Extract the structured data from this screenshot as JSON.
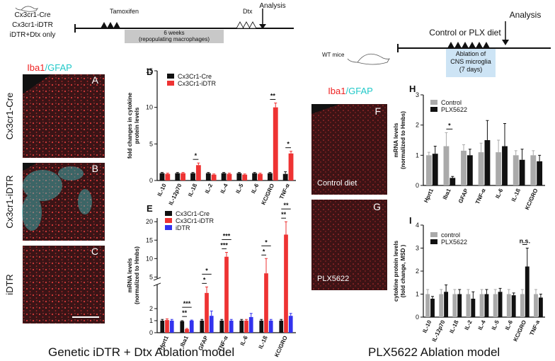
{
  "left_scheme": {
    "groups": [
      "Cx3cr1-Cre",
      "Cx3cr1-iDTR",
      "iDTR+Dtx only"
    ],
    "tamoxifen": "Tamoxifen",
    "period": [
      "6 weeks",
      "(repopulating macrophages)"
    ],
    "dtx": "Dtx",
    "analysis": "Analysis"
  },
  "right_scheme": {
    "mice": "WT mice",
    "diet": "Control or PLX diet",
    "ablation": [
      "Ablation of",
      "CNS microglia",
      "(7 days)"
    ],
    "analysis": "Analysis"
  },
  "images": {
    "stain": [
      "Iba1",
      "/GFAP"
    ],
    "left": [
      {
        "panel": "A",
        "row_label": "Cx3cr1-Cre"
      },
      {
        "panel": "B",
        "row_label": "Cx3cr1-iDTR"
      },
      {
        "panel": "C",
        "row_label": "iDTR"
      }
    ],
    "right": [
      {
        "panel": "F",
        "label": "Control diet"
      },
      {
        "panel": "G",
        "label": "PLX5622"
      }
    ]
  },
  "captions": [
    "Genetic iDTR + Dtx Ablation model",
    "PLX5622 Ablation model"
  ],
  "chart_data": [
    {
      "type": "bar",
      "panel": "D",
      "ylabel": [
        "fold changes in cytokine",
        "protein levels"
      ],
      "categories": [
        "IL-10",
        "IL-12p70",
        "IL-1ß",
        "IL-2",
        "IL-4",
        "IL-5",
        "IL-6",
        "KC/GRO",
        "TNF-α"
      ],
      "series": [
        {
          "name": "Cx3Cr1-Cre",
          "color": "#111111",
          "values": [
            1,
            1,
            1,
            1,
            1,
            1,
            1,
            1,
            0.9
          ],
          "errors": [
            0.1,
            0.1,
            0.1,
            0.1,
            0.1,
            0.1,
            0.1,
            0.1,
            0.3
          ]
        },
        {
          "name": "Cx3Cr1-iDTR",
          "color": "#ee3333",
          "values": [
            0.9,
            1,
            2.1,
            0.8,
            0.9,
            0.8,
            0.9,
            10,
            3.7
          ],
          "errors": [
            0.1,
            0.1,
            0.3,
            0.1,
            0.1,
            0.1,
            0.1,
            0.6,
            0.3
          ]
        }
      ],
      "significance": [
        null,
        null,
        "*",
        null,
        null,
        null,
        null,
        "**",
        "*"
      ],
      "ylim": [
        0,
        15
      ],
      "yticks": [
        0,
        5,
        10,
        15
      ]
    },
    {
      "type": "bar",
      "panel": "E",
      "ylabel": [
        "mRNA levels",
        "(normalized to Hmbs)"
      ],
      "categories": [
        "Hprt1",
        "Iba1",
        "GFAP",
        "TNF-α",
        "IL-6",
        "IL-1ß",
        "KC/GRO"
      ],
      "series": [
        {
          "name": "Cx3Cr1-Cre",
          "color": "#111111",
          "values": [
            1,
            0.95,
            1,
            1,
            1,
            1,
            1
          ],
          "errors": [
            0.1,
            0.05,
            0.1,
            0.1,
            0.1,
            0.1,
            0.1
          ]
        },
        {
          "name": "Cx3Cr1-iDTR",
          "color": "#ee3333",
          "values": [
            1.05,
            0.3,
            3.3,
            10.5,
            1,
            6,
            16.5
          ],
          "errors": [
            0.1,
            0.05,
            0.5,
            1.2,
            0.1,
            4,
            3.5
          ]
        },
        {
          "name": "iDTR",
          "color": "#3333ee",
          "values": [
            1,
            1,
            1.4,
            1,
            1.3,
            1,
            1.4
          ],
          "errors": [
            0.1,
            0.05,
            0.4,
            0.1,
            0.3,
            0.1,
            0.2
          ]
        }
      ],
      "significance": [
        null,
        [
          "**",
          "***"
        ],
        [
          "*",
          "*"
        ],
        [
          "***",
          "***"
        ],
        null,
        [
          "*",
          "*"
        ],
        [
          "**",
          "**"
        ]
      ],
      "ylim": [
        0,
        21
      ],
      "axis_break": [
        4,
        4.5
      ],
      "yticks": [
        0,
        1,
        2,
        5,
        10,
        15,
        20
      ]
    },
    {
      "type": "bar",
      "panel": "H",
      "ylabel": [
        "mRNA levels",
        "(normalized to Hmbs)"
      ],
      "categories": [
        "Hprt1",
        "Iba1",
        "GFAP",
        "TNF-α",
        "IL-6",
        "IL-1ß",
        "KC/GRO"
      ],
      "series": [
        {
          "name": "Control",
          "color": "#aaaaaa",
          "values": [
            1,
            1.3,
            1.15,
            1.1,
            1.1,
            1,
            1
          ],
          "errors": [
            0.1,
            0.45,
            0.2,
            0.3,
            0.4,
            0.15,
            0.15
          ]
        },
        {
          "name": "PLX5622",
          "color": "#111111",
          "values": [
            1.05,
            0.25,
            1,
            1.5,
            1.3,
            0.85,
            0.8
          ],
          "errors": [
            0.25,
            0.05,
            0.2,
            0.65,
            0.75,
            0.35,
            0.2
          ]
        }
      ],
      "significance": [
        null,
        "*",
        null,
        null,
        null,
        null,
        null
      ],
      "ylim": [
        0,
        3
      ],
      "yticks": [
        0,
        1,
        2,
        3
      ]
    },
    {
      "type": "bar",
      "panel": "I",
      "ylabel": [
        "cytokine protein levels",
        "(fold change, MSD )"
      ],
      "categories": [
        "IL-10",
        "IL-12p70",
        "IL-1ß",
        "IL-2",
        "IL-4",
        "IL-5",
        "IL-6",
        "KC/GRO",
        "TNF-a"
      ],
      "series": [
        {
          "name": "control",
          "color": "#aaaaaa",
          "values": [
            1,
            1,
            1,
            1,
            1,
            1,
            1,
            1,
            1
          ],
          "errors": [
            0.2,
            0.2,
            0.2,
            0.2,
            0.2,
            0.2,
            0.2,
            0.2,
            0.2
          ]
        },
        {
          "name": "PLX5622",
          "color": "#111111",
          "values": [
            0.8,
            1.1,
            1,
            0.8,
            1,
            1.1,
            0.95,
            2.2,
            0.85
          ],
          "errors": [
            0.1,
            0.3,
            0.2,
            0.3,
            0.2,
            0.15,
            0.1,
            0.8,
            0.15
          ]
        }
      ],
      "significance": [
        null,
        null,
        null,
        null,
        null,
        null,
        null,
        "n.s.",
        null
      ],
      "ylim": [
        0,
        4
      ],
      "yticks": [
        0,
        1,
        2,
        3,
        4
      ]
    }
  ]
}
